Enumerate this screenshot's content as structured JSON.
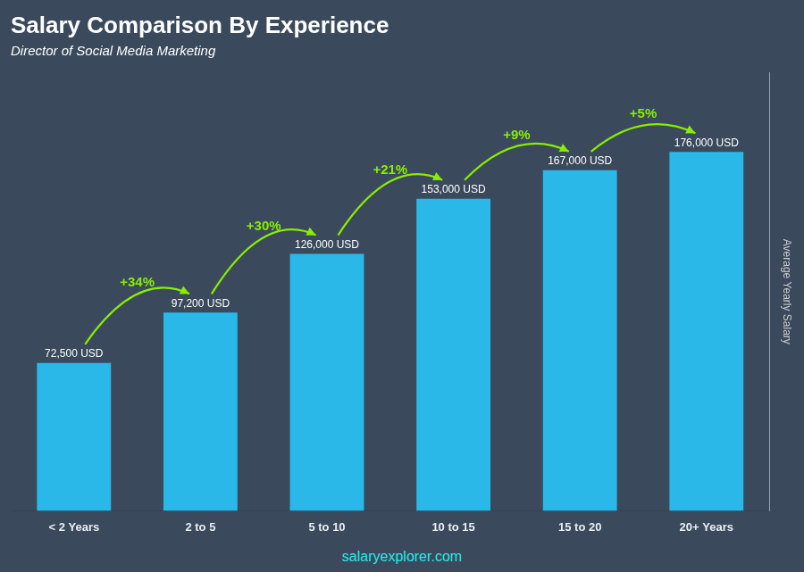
{
  "chart_data": {
    "type": "bar",
    "title": "Salary Comparison By Experience",
    "subtitle": "Director of Social Media Marketing",
    "categories": [
      "< 2 Years",
      "2 to 5",
      "5 to 10",
      "10 to 15",
      "15 to 20",
      "20+ Years"
    ],
    "values": [
      72500,
      97200,
      126000,
      153000,
      167000,
      176000
    ],
    "value_labels": [
      "72,500 USD",
      "97,200 USD",
      "126,000 USD",
      "153,000 USD",
      "167,000 USD",
      "176,000 USD"
    ],
    "data_labels": true,
    "color": "#29b8e8",
    "ylabel": "Average Yearly Salary",
    "ylim": [
      0,
      215000
    ],
    "tick_labels": "x",
    "grid": false,
    "annotations": [
      {
        "text": "+34%",
        "color": "#88ee00"
      },
      {
        "text": "+30%",
        "color": "#88ee00"
      },
      {
        "text": "+21%",
        "color": "#88ee00"
      },
      {
        "text": "+9%",
        "color": "#88ee00"
      },
      {
        "text": "+5%",
        "color": "#88ee00"
      }
    ],
    "footer": "salaryexplorer.com"
  }
}
